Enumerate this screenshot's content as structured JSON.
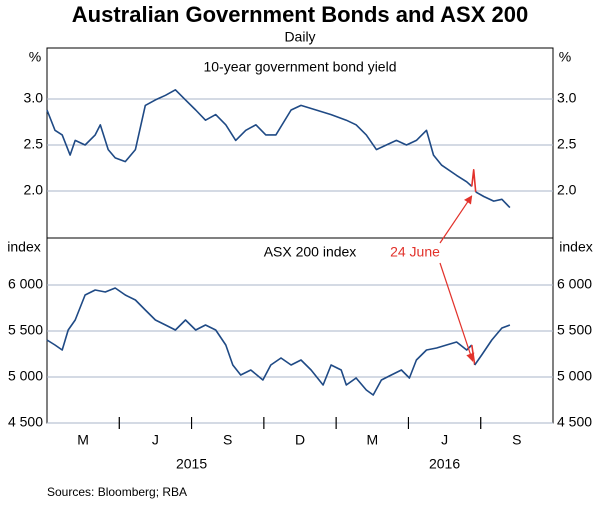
{
  "title": "Australian Government Bonds and ASX 200",
  "subtitle": "Daily",
  "source": "Sources:  Bloomberg; RBA",
  "chart_data": [
    {
      "type": "line",
      "subtitle": "10-year government bond yield",
      "y_unit": "%",
      "xlim": [
        0,
        21
      ],
      "ylim": [
        1.5,
        3.5
      ],
      "yticks": [
        {
          "value": 2,
          "label": "2.0"
        },
        2.5,
        {
          "value": 3,
          "label": "3.0"
        }
      ],
      "grid": true,
      "series": [
        {
          "color": "#1f4a85",
          "x": [
            0,
            0.33,
            0.63,
            0.96,
            1.17,
            1.58,
            2.0,
            2.21,
            2.54,
            2.83,
            3.25,
            3.67,
            4.08,
            4.5,
            4.92,
            5.33,
            5.75,
            6.17,
            6.58,
            7.0,
            7.42,
            7.83,
            8.25,
            8.67,
            9.08,
            9.5,
            10.13,
            10.54,
            11.17,
            11.79,
            12.42,
            12.83,
            13.25,
            13.67,
            14.08,
            14.5,
            14.92,
            15.33,
            15.75,
            16.04,
            16.38,
            17.0,
            17.42,
            17.63
          ],
          "values": [
            2.88,
            2.66,
            2.61,
            2.39,
            2.55,
            2.5,
            2.61,
            2.72,
            2.45,
            2.36,
            2.32,
            2.45,
            2.93,
            2.99,
            3.04,
            3.1,
            2.99,
            2.88,
            2.77,
            2.83,
            2.72,
            2.55,
            2.66,
            2.72,
            2.61,
            2.61,
            2.88,
            2.93,
            2.88,
            2.83,
            2.77,
            2.72,
            2.61,
            2.45,
            2.5,
            2.55,
            2.5,
            2.55,
            2.66,
            2.39,
            2.28,
            2.17,
            2.1,
            2.05
          ]
        },
        {
          "color": "#e2322b",
          "x": [
            17.63,
            17.71,
            17.79
          ],
          "values": [
            2.05,
            2.23,
            1.99
          ]
        },
        {
          "color": "#1f4a85",
          "x": [
            17.79,
            18.13,
            18.54,
            18.88,
            19.21
          ],
          "values": [
            1.99,
            1.94,
            1.89,
            1.91,
            1.82
          ]
        }
      ]
    },
    {
      "type": "line",
      "subtitle": "ASX 200 index",
      "y_unit": "index",
      "annotation": "24 June",
      "xlim": [
        0,
        21
      ],
      "ylim": [
        4500,
        6500
      ],
      "xticks": [
        {
          "value": 1.5,
          "label": "M"
        },
        {
          "value": 4.5,
          "label": "J"
        },
        {
          "value": 7.5,
          "label": "S"
        },
        {
          "value": 10.5,
          "label": "D"
        },
        {
          "value": 13.5,
          "label": "M"
        },
        {
          "value": 16.5,
          "label": "J"
        },
        {
          "value": 19.5,
          "label": "S"
        }
      ],
      "year_labels": [
        {
          "value": 6,
          "label": "2015"
        },
        {
          "value": 16.5,
          "label": "2016"
        }
      ],
      "yticks": [
        {
          "value": 4500,
          "label": "4 500"
        },
        {
          "value": 5000,
          "label": "5 000"
        },
        {
          "value": 5500,
          "label": "5 500"
        },
        {
          "value": 6000,
          "label": "6 000"
        }
      ],
      "grid": true,
      "series": [
        {
          "color": "#1f4a85",
          "x": [
            0,
            0.33,
            0.63,
            0.88,
            1.17,
            1.58,
            2.0,
            2.42,
            2.83,
            3.25,
            3.67,
            4.08,
            4.5,
            4.92,
            5.33,
            5.75,
            6.17,
            6.58,
            7.0,
            7.42,
            7.71,
            8.04,
            8.46,
            8.96,
            9.29,
            9.71,
            10.13,
            10.54,
            10.96,
            11.46,
            11.79,
            12.21,
            12.42,
            12.83,
            13.25,
            13.54,
            13.88,
            14.29,
            14.71,
            15.04,
            15.33,
            15.75,
            16.17,
            16.58,
            17.0,
            17.42,
            17.63
          ],
          "values": [
            5402,
            5348,
            5293,
            5511,
            5620,
            5891,
            5946,
            5924,
            5967,
            5891,
            5837,
            5728,
            5620,
            5565,
            5511,
            5620,
            5511,
            5565,
            5511,
            5348,
            5130,
            5022,
            5076,
            4967,
            5130,
            5207,
            5130,
            5185,
            5076,
            4913,
            5130,
            5076,
            4913,
            4989,
            4859,
            4804,
            4967,
            5022,
            5076,
            4989,
            5185,
            5293,
            5315,
            5348,
            5380,
            5293,
            5348
          ]
        },
        {
          "color": "#e2322b",
          "x": [
            17.63,
            17.75
          ],
          "values": [
            5348,
            5130
          ]
        },
        {
          "color": "#1f4a85",
          "x": [
            17.75,
            18.04,
            18.46,
            18.88,
            19.21
          ],
          "values": [
            5130,
            5239,
            5402,
            5533,
            5565
          ]
        }
      ]
    }
  ]
}
